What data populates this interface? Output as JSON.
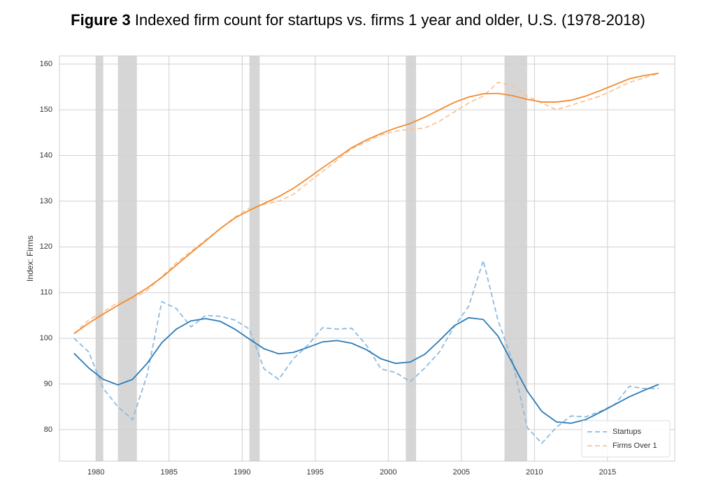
{
  "chart_data": {
    "type": "line",
    "title_label": "Figure 3",
    "title": "Indexed firm count for startups vs. firms 1 year and older, U.S. (1978-2018)",
    "ylabel": "Index: Firms",
    "x": [
      1978.5,
      1979.5,
      1980.5,
      1981.5,
      1982.5,
      1983.5,
      1984.5,
      1985.5,
      1986.5,
      1987.5,
      1988.5,
      1989.5,
      1990.5,
      1991.5,
      1992.5,
      1993.5,
      1994.5,
      1995.5,
      1996.5,
      1997.5,
      1998.5,
      1999.5,
      2000.5,
      2001.5,
      2002.5,
      2003.5,
      2004.5,
      2005.5,
      2006.5,
      2007.5,
      2008.5,
      2009.5,
      2010.5,
      2011.5,
      2012.5,
      2013.5,
      2014.5,
      2015.5,
      2016.5,
      2017.5,
      2018.5
    ],
    "series": [
      {
        "name": "Startups",
        "color": "#8dbbe0",
        "dashed": true,
        "values": [
          100,
          97,
          89,
          85,
          82.2,
          92,
          108,
          106.5,
          102.5,
          105,
          104.8,
          104,
          102,
          93.3,
          91,
          95.5,
          98.5,
          102.3,
          102,
          102.2,
          98.5,
          93.3,
          92.5,
          90.5,
          93.5,
          97,
          102.5,
          107,
          117,
          104,
          95,
          80.5,
          77,
          80.5,
          83,
          82.8,
          84,
          85.5,
          89.5,
          89,
          89
        ]
      },
      {
        "name": "Firms Over 1",
        "color": "#f8c49c",
        "dashed": true,
        "values": [
          101,
          104,
          105.8,
          107.8,
          108.5,
          110.5,
          113.5,
          116.5,
          119,
          121.5,
          124,
          126.5,
          128.5,
          129.3,
          130,
          131.5,
          134,
          136.5,
          139,
          141.5,
          143,
          144.5,
          145.3,
          145.8,
          146,
          147.5,
          149.5,
          151.5,
          153,
          156,
          155.3,
          153,
          151.5,
          150,
          151,
          152,
          153,
          154.5,
          156,
          157,
          158
        ]
      },
      {
        "color": "#2c7bb6",
        "dashed": false,
        "values": [
          96.7,
          93.5,
          91,
          89.8,
          91,
          94.5,
          99,
          102,
          103.8,
          104.3,
          103.7,
          102,
          99.8,
          97.7,
          96.6,
          96.9,
          98,
          99.2,
          99.5,
          98.9,
          97.5,
          95.5,
          94.5,
          94.8,
          96.5,
          99.5,
          102.7,
          104.5,
          104.1,
          100.5,
          94.5,
          88.5,
          84,
          81.7,
          81.4,
          82.2,
          83.8,
          85.5,
          87.2,
          88.6,
          89.9
        ]
      },
      {
        "color": "#f28a2e",
        "dashed": false,
        "values": [
          101,
          103.3,
          105.3,
          107.2,
          109,
          111,
          113.3,
          116,
          118.7,
          121.3,
          124,
          126.3,
          128,
          129.5,
          131,
          132.8,
          135,
          137.3,
          139.5,
          141.7,
          143.4,
          144.8,
          146,
          147,
          148.4,
          150,
          151.6,
          152.8,
          153.5,
          153.6,
          153.1,
          152.3,
          151.7,
          151.7,
          152.1,
          153,
          154.2,
          155.5,
          156.8,
          157.5,
          158
        ]
      }
    ],
    "shaded_ranges": [
      [
        1980,
        1980.5
      ],
      [
        1981.5,
        1982.8
      ],
      [
        1990.5,
        1991.2
      ],
      [
        2001.2,
        2001.9
      ],
      [
        2007.95,
        2009.5
      ]
    ],
    "shade_color": "#d6d6d6",
    "xlim": [
      1977.5,
      2019.6
    ],
    "xticks": [
      1980,
      1985,
      1990,
      1995,
      2000,
      2005,
      2010,
      2015
    ],
    "ylim": [
      73.1,
      161.8
    ],
    "yticks": [
      80,
      90,
      100,
      110,
      120,
      130,
      140,
      150,
      160
    ],
    "grid": true,
    "legend": "lower right"
  }
}
